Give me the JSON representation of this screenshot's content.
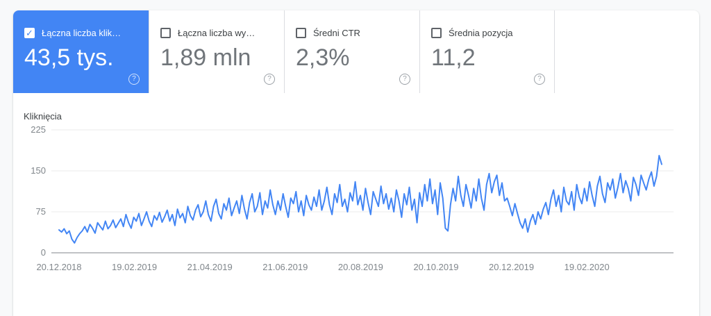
{
  "colors": {
    "accent_blue": "#4285f4",
    "card_value_gray": "#70757a",
    "axis_gray": "#80868b",
    "gridline_light": "#ebebeb",
    "axis_line": "#80868b",
    "page_background": "#f8f9fa"
  },
  "icons": {
    "check_glyph": "✓",
    "help_glyph": "?"
  },
  "cards": [
    {
      "label": "Łączna liczba klik…",
      "value": "43,5 tys.",
      "checked": true
    },
    {
      "label": "Łączna liczba wy…",
      "value": "1,89 mln",
      "checked": false
    },
    {
      "label": "Średni CTR",
      "value": "2,3%",
      "checked": false
    },
    {
      "label": "Średnia pozycja",
      "value": "11,2",
      "checked": false
    }
  ],
  "chart_data": {
    "type": "line",
    "title": "Kliknięcia",
    "ylabel": "Kliknięcia",
    "series_name": "Kliknięcia",
    "line_color": "#4285f4",
    "ylim": [
      0,
      225
    ],
    "y_ticks": [
      0,
      75,
      150,
      225
    ],
    "grid": "horizontal",
    "legend_position": "none",
    "x_tick_labels": [
      "20.12.2018",
      "19.02.2019",
      "21.04.2019",
      "21.06.2019",
      "20.08.2019",
      "20.10.2019",
      "20.12.2019",
      "19.02.2020"
    ],
    "x_note": "daily clicks, one point per ~2 days, 20.12.2018 through end of March 2020",
    "values": [
      42,
      38,
      44,
      35,
      40,
      25,
      18,
      28,
      35,
      40,
      48,
      38,
      52,
      45,
      36,
      55,
      48,
      42,
      58,
      44,
      50,
      60,
      46,
      54,
      62,
      48,
      70,
      55,
      45,
      65,
      58,
      72,
      50,
      62,
      75,
      58,
      48,
      68,
      60,
      74,
      56,
      66,
      78,
      58,
      70,
      50,
      80,
      64,
      72,
      55,
      85,
      68,
      60,
      78,
      88,
      66,
      75,
      95,
      70,
      58,
      85,
      98,
      72,
      62,
      90,
      78,
      100,
      68,
      82,
      95,
      72,
      105,
      80,
      62,
      92,
      108,
      75,
      85,
      110,
      70,
      95,
      82,
      115,
      88,
      70,
      95,
      78,
      108,
      85,
      65,
      100,
      90,
      112,
      75,
      95,
      68,
      105,
      88,
      78,
      102,
      85,
      115,
      78,
      95,
      120,
      88,
      70,
      108,
      92,
      125,
      85,
      98,
      75,
      110,
      95,
      130,
      88,
      105,
      78,
      118,
      92,
      70,
      112,
      98,
      85,
      122,
      90,
      108,
      80,
      100,
      75,
      115,
      95,
      65,
      108,
      88,
      120,
      78,
      98,
      55,
      110,
      85,
      125,
      95,
      135,
      90,
      115,
      70,
      128,
      100,
      45,
      40,
      88,
      118,
      95,
      140,
      105,
      85,
      125,
      105,
      82,
      118,
      95,
      135,
      100,
      78,
      125,
      145,
      110,
      130,
      142,
      105,
      128,
      95,
      100,
      85,
      68,
      90,
      72,
      55,
      45,
      62,
      38,
      58,
      70,
      52,
      75,
      62,
      80,
      92,
      70,
      98,
      115,
      85,
      105,
      75,
      120,
      95,
      88,
      112,
      78,
      125,
      102,
      90,
      118,
      95,
      130,
      105,
      85,
      122,
      140,
      108,
      92,
      128,
      115,
      135,
      100,
      120,
      145,
      110,
      132,
      118,
      95,
      138,
      125,
      105,
      142,
      128,
      115,
      135,
      148,
      122,
      140,
      178,
      162
    ]
  }
}
